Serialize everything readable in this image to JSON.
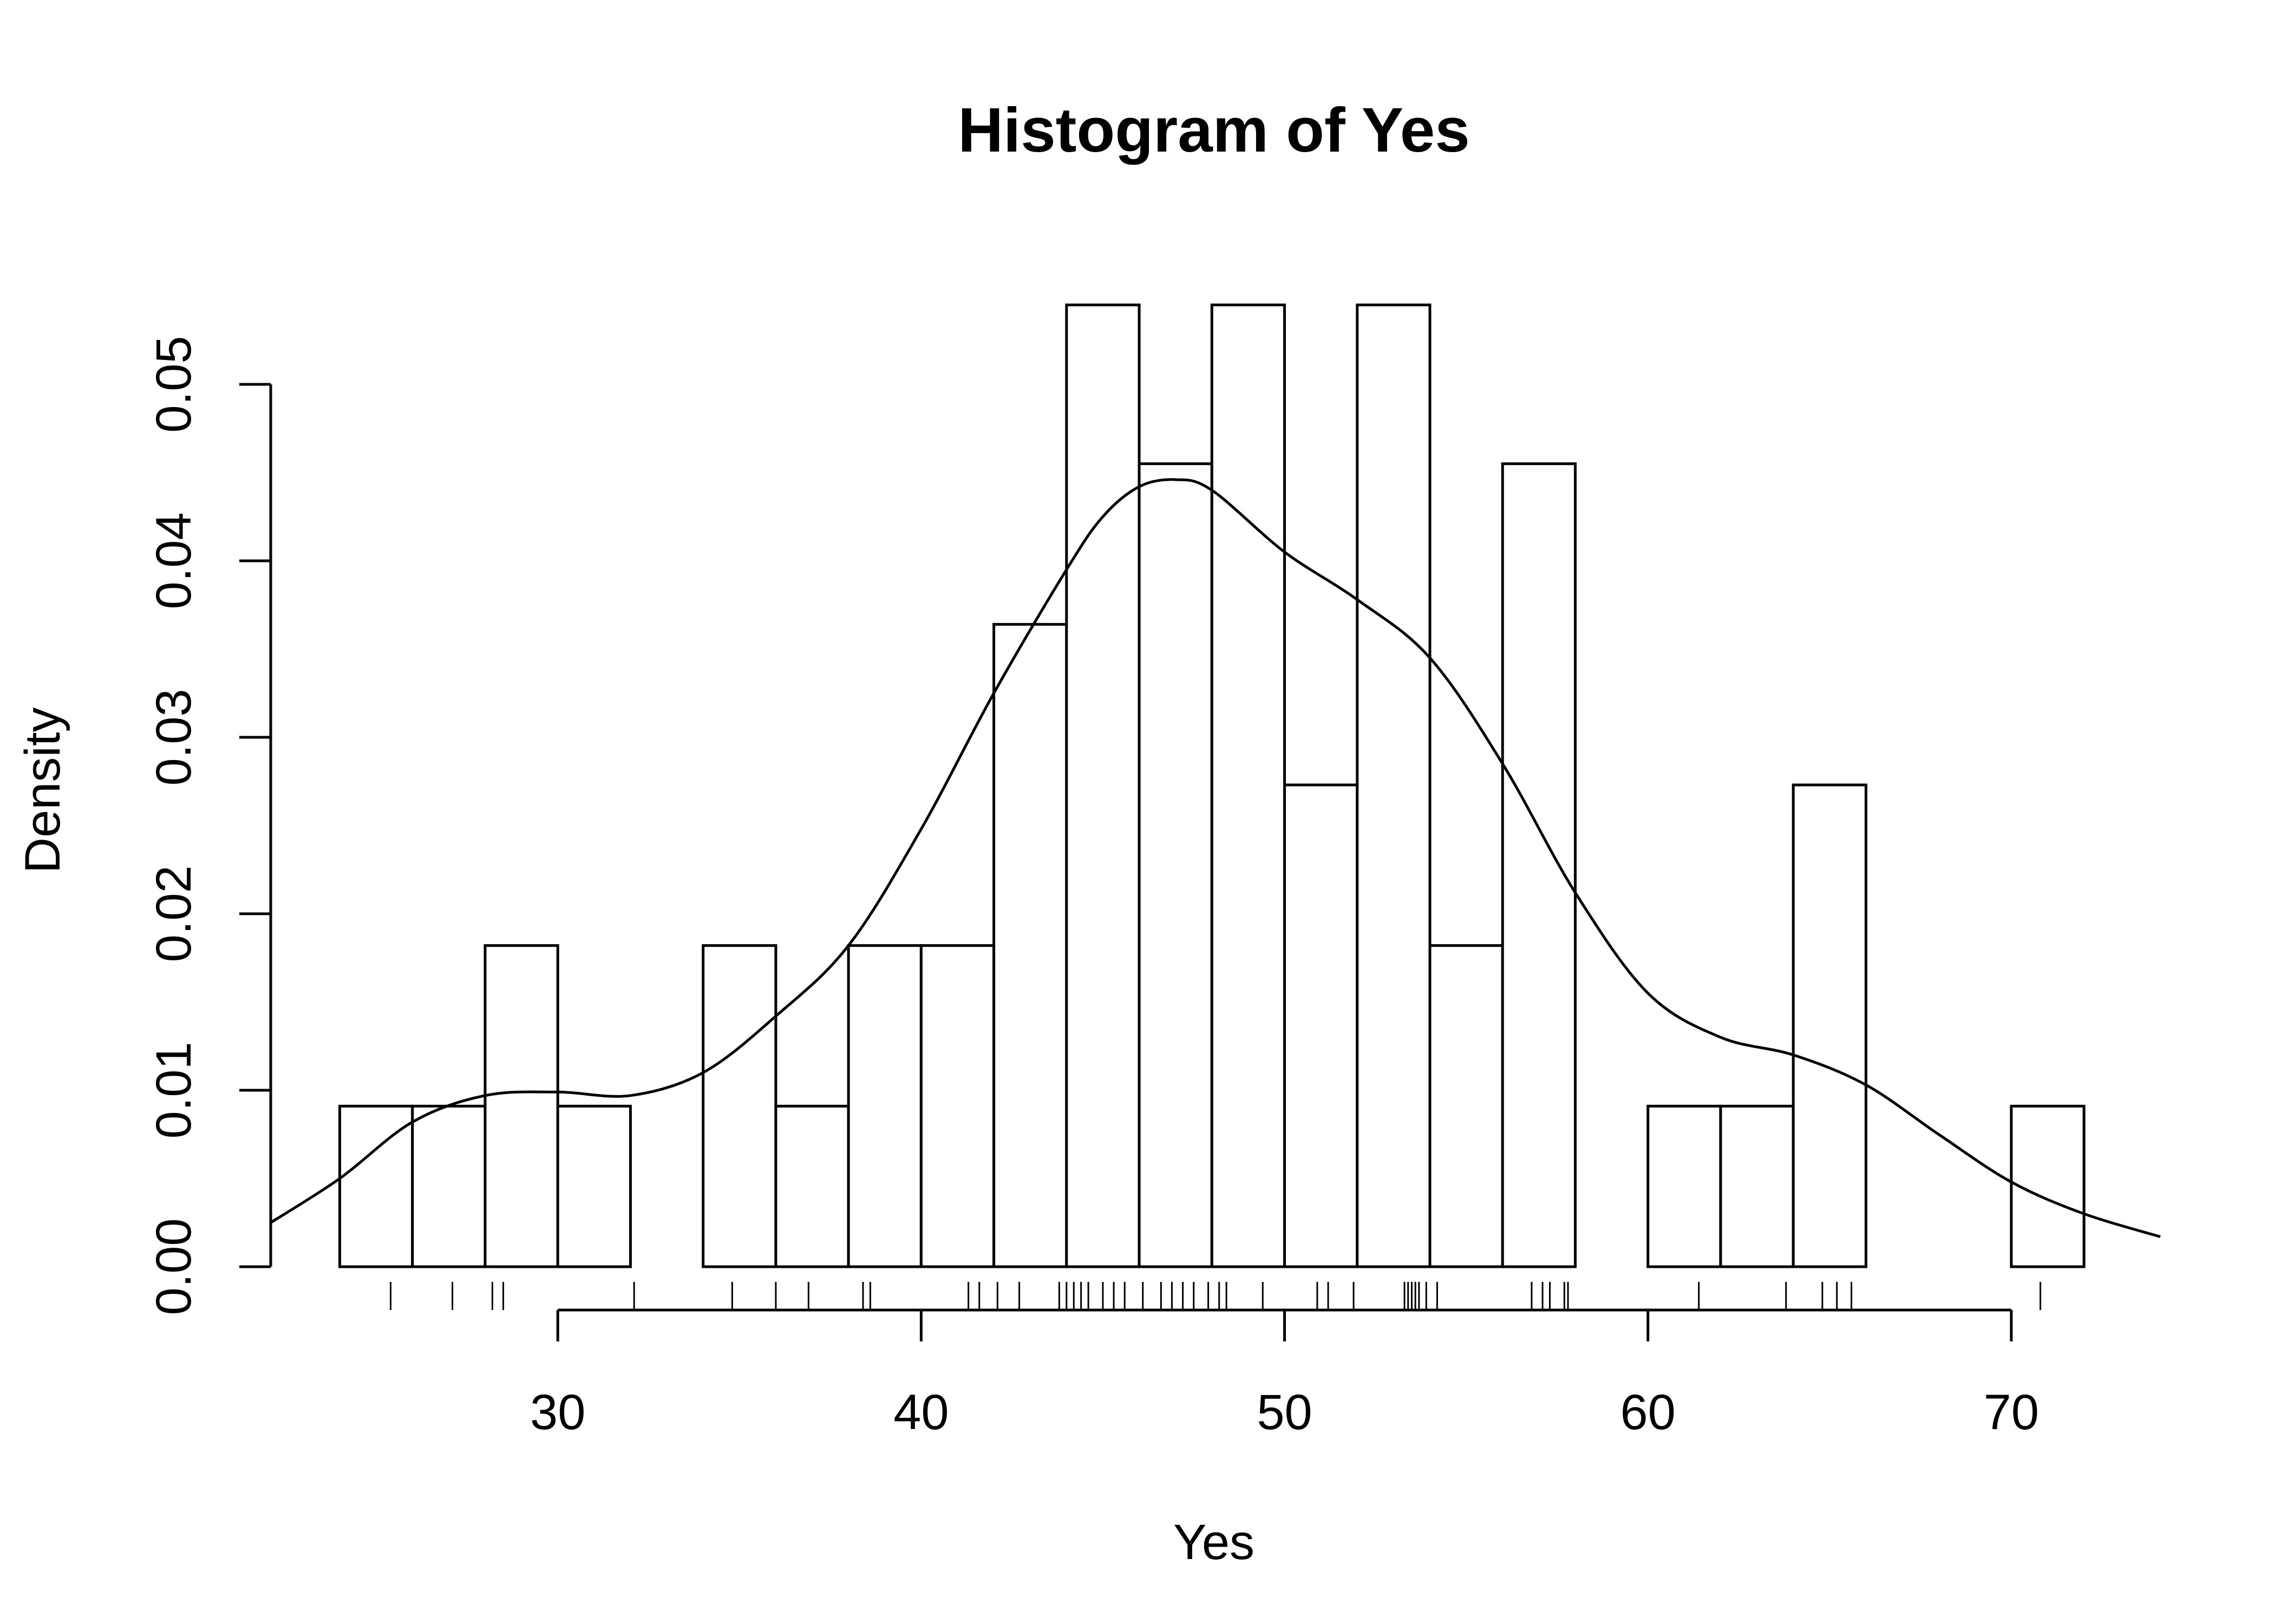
{
  "chart_data": {
    "type": "bar",
    "title": "Histogram of Yes",
    "xlabel": "Yes",
    "ylabel": "Density",
    "xlim": [
      22.1,
      74.1
    ],
    "ylim": [
      0,
      0.055
    ],
    "x_ticks": [
      30,
      40,
      50,
      60,
      70
    ],
    "x_tick_labels": [
      "30",
      "40",
      "50",
      "60",
      "70"
    ],
    "y_ticks": [
      0,
      0.01,
      0.02,
      0.03,
      0.04,
      0.05
    ],
    "y_tick_labels": [
      "0.00",
      "0.01",
      "0.02",
      "0.03",
      "0.04",
      "0.05"
    ],
    "bins": [
      {
        "x0": 24,
        "x1": 26,
        "density": 0.0091
      },
      {
        "x0": 26,
        "x1": 28,
        "density": 0.0091
      },
      {
        "x0": 28,
        "x1": 30,
        "density": 0.0182
      },
      {
        "x0": 30,
        "x1": 32,
        "density": 0.0091
      },
      {
        "x0": 32,
        "x1": 34,
        "density": 0
      },
      {
        "x0": 34,
        "x1": 36,
        "density": 0.0182
      },
      {
        "x0": 36,
        "x1": 38,
        "density": 0.0091
      },
      {
        "x0": 38,
        "x1": 40,
        "density": 0.0182
      },
      {
        "x0": 40,
        "x1": 42,
        "density": 0.0182
      },
      {
        "x0": 42,
        "x1": 44,
        "density": 0.0364
      },
      {
        "x0": 44,
        "x1": 46,
        "density": 0.0545
      },
      {
        "x0": 46,
        "x1": 48,
        "density": 0.0455
      },
      {
        "x0": 48,
        "x1": 50,
        "density": 0.0545
      },
      {
        "x0": 50,
        "x1": 52,
        "density": 0.0273
      },
      {
        "x0": 52,
        "x1": 54,
        "density": 0.0545
      },
      {
        "x0": 54,
        "x1": 56,
        "density": 0.0182
      },
      {
        "x0": 56,
        "x1": 58,
        "density": 0.0455
      },
      {
        "x0": 58,
        "x1": 60,
        "density": 0
      },
      {
        "x0": 60,
        "x1": 62,
        "density": 0.0091
      },
      {
        "x0": 62,
        "x1": 64,
        "density": 0.0091
      },
      {
        "x0": 64,
        "x1": 66,
        "density": 0.0273
      },
      {
        "x0": 66,
        "x1": 68,
        "density": 0
      },
      {
        "x0": 68,
        "x1": 70,
        "density": 0
      },
      {
        "x0": 70,
        "x1": 72,
        "density": 0.0091
      }
    ],
    "density_curve": {
      "x": [
        22.1,
        24,
        26,
        28,
        30,
        32,
        34,
        36,
        38,
        40,
        42,
        44,
        45,
        46,
        47,
        48,
        50,
        52,
        54,
        56,
        58,
        60,
        62,
        64,
        66,
        68,
        70,
        72,
        74.1
      ],
      "y": [
        0.0025,
        0.005,
        0.0082,
        0.0097,
        0.0099,
        0.0097,
        0.011,
        0.0142,
        0.0182,
        0.0248,
        0.0325,
        0.0395,
        0.0425,
        0.0442,
        0.0446,
        0.044,
        0.0405,
        0.0378,
        0.0345,
        0.0285,
        0.0212,
        0.0155,
        0.013,
        0.012,
        0.0103,
        0.0075,
        0.0048,
        0.003,
        0.0017
      ]
    },
    "rug": [
      25.4,
      27.1,
      28.2,
      28.5,
      32.1,
      34.8,
      36.0,
      36.9,
      38.4,
      38.6,
      41.3,
      41.6,
      42.1,
      42.7,
      43.8,
      44.0,
      44.2,
      44.4,
      44.6,
      45.0,
      45.3,
      45.6,
      46.1,
      46.6,
      46.9,
      47.2,
      47.5,
      47.9,
      48.2,
      48.4,
      49.4,
      50.9,
      51.2,
      51.9,
      53.3,
      53.4,
      53.5,
      53.6,
      53.7,
      53.9,
      54.2,
      56.8,
      57.1,
      57.3,
      57.7,
      57.8,
      61.4,
      63.8,
      64.8,
      65.2,
      65.6,
      70.8
    ],
    "grid": false,
    "legend": false
  }
}
